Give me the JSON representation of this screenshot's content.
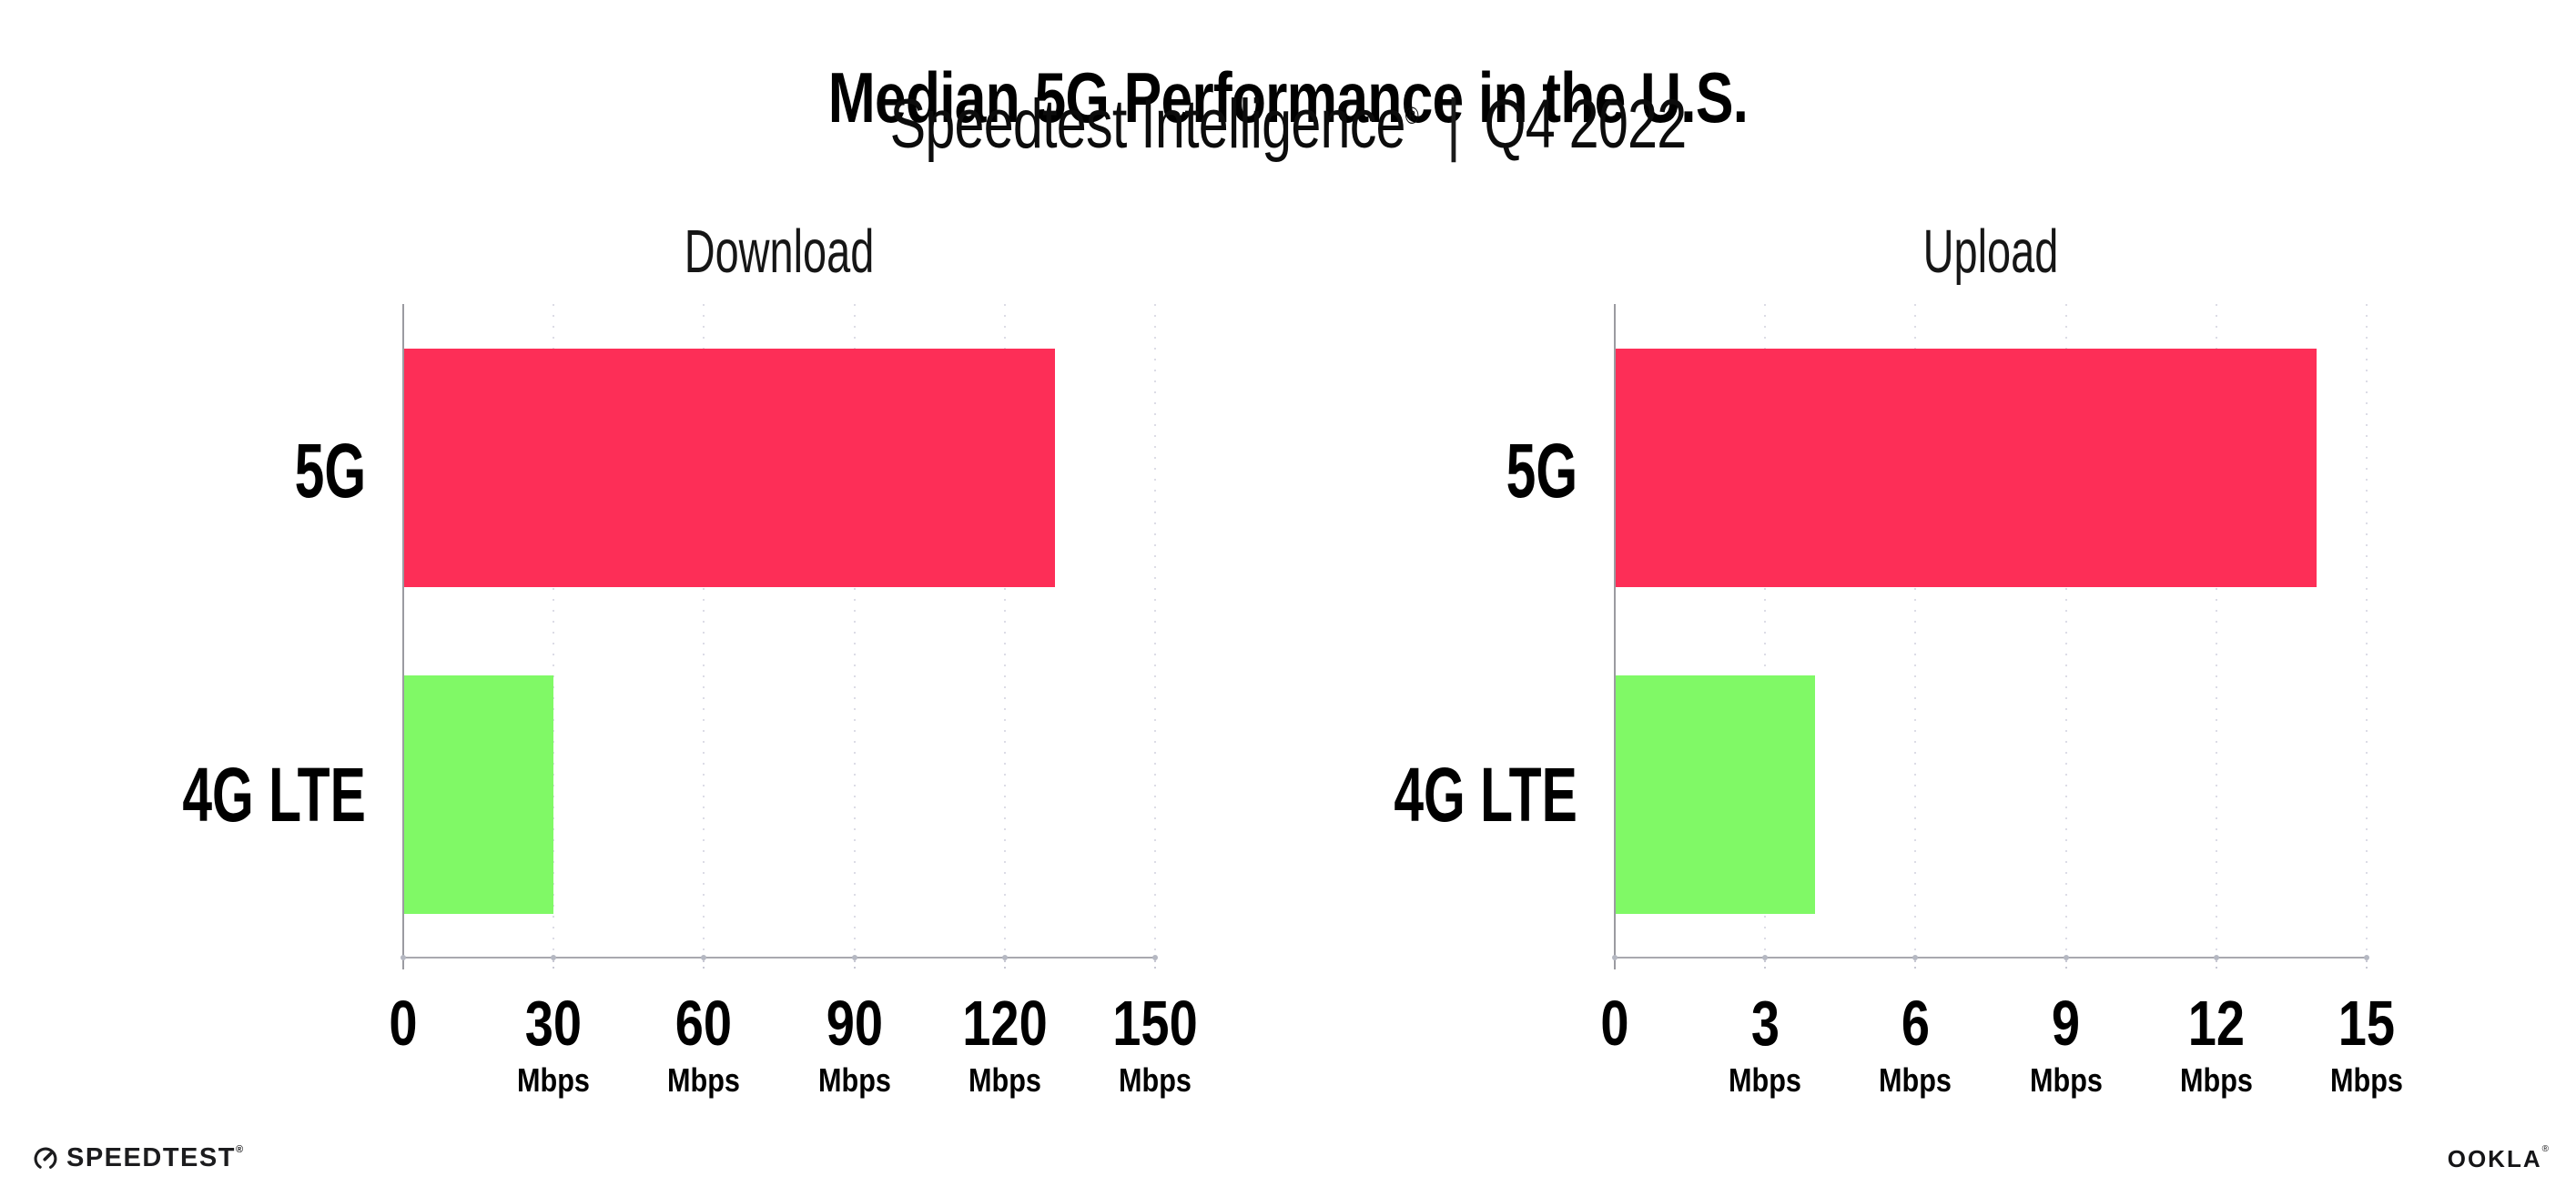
{
  "header": {
    "title": "Median 5G Performance in the U.S.",
    "subtitle": {
      "product": "Speedtest Intelligence",
      "registered_mark": "®",
      "separator": "|",
      "period": "Q4 2022"
    }
  },
  "chart_data": [
    {
      "type": "bar",
      "orientation": "horizontal",
      "title": "Download",
      "categories": [
        "5G",
        "4G LTE"
      ],
      "values": [
        130,
        30
      ],
      "unit": "Mbps",
      "xlim": [
        0,
        150
      ],
      "xticks": [
        0,
        30,
        60,
        90,
        120,
        150
      ],
      "grid": "dotted-vertical",
      "bar_colors": [
        "#fd2e57",
        "#80f966"
      ]
    },
    {
      "type": "bar",
      "orientation": "horizontal",
      "title": "Upload",
      "categories": [
        "5G",
        "4G LTE"
      ],
      "values": [
        14,
        4
      ],
      "unit": "Mbps",
      "xlim": [
        0,
        15
      ],
      "xticks": [
        0,
        3,
        6,
        9,
        12,
        15
      ],
      "grid": "dotted-vertical",
      "bar_colors": [
        "#fd2e57",
        "#80f966"
      ]
    }
  ],
  "style": {
    "bar_pink": "#fd2e57",
    "bar_green": "#80f966",
    "grid_color": "#dcdce6",
    "axis_color": "#a9a9af"
  },
  "footer": {
    "speedtest_text": "SPEEDTEST",
    "speedtest_mark": "®",
    "ookla_text": "OOKLA",
    "ookla_mark": "®"
  }
}
